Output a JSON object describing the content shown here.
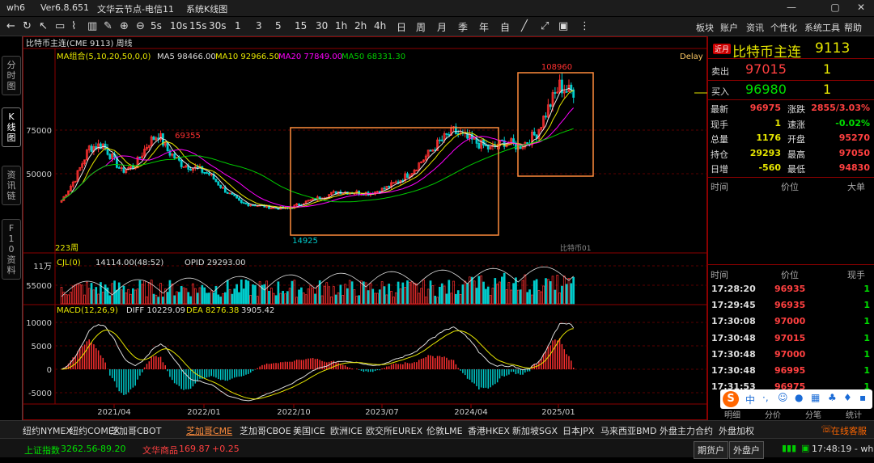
{
  "titlebar": {
    "app": "wh6",
    "version": "Ver6.8.651",
    "server": "文华云节点-电信11",
    "mode": "系统K线图"
  },
  "toolbar": {
    "periods": [
      "5s",
      "10s",
      "15s",
      "30s",
      "1",
      "3",
      "5",
      "15",
      "30",
      "1h",
      "2h",
      "4h",
      "日",
      "周",
      "月",
      "季",
      "年",
      "自"
    ],
    "right_menu": [
      "板块",
      "账户",
      "资讯",
      "个性化",
      "系统工具",
      "帮助"
    ]
  },
  "left_tabs": [
    {
      "label": "分时图",
      "active": false
    },
    {
      "label": "K线图",
      "active": true
    },
    {
      "label": "资讯链",
      "active": false
    },
    {
      "label": "F10资料",
      "active": false
    }
  ],
  "chart_header": {
    "contract": "比特币主连(CME 9113)",
    "period": "周线",
    "delay": "Delay"
  },
  "ma_legend": {
    "title": "MA组合(5,10,20,50,0,0)",
    "ma5": "MA5 98466.00",
    "ma10": "MA10 92966.50",
    "ma20": "MA20 77849.00",
    "ma50": "MA50 68331.30"
  },
  "cjl_legend": {
    "title": "CJL(0)",
    "value": "14114.00(48:52)",
    "opid": "OPID 29293.00"
  },
  "macd_legend": {
    "title": "MACD(12,26,9)",
    "diff": "DIFF 10229.09",
    "dea": "DEA 8276.38",
    "macd": "3905.42"
  },
  "annotations": {
    "high_2021": "69355",
    "low": "14925",
    "high_2024": "108960",
    "count": "223周",
    "watermark": "比特币01"
  },
  "colors": {
    "up": "#ff3030",
    "down": "#00cccc",
    "ma5": "#e6e6e6",
    "ma10": "#e6e600",
    "ma20": "#ff00ff",
    "ma50": "#00cc00",
    "box": "#ff8c3c"
  },
  "chart_data": {
    "type": "candlestick",
    "title": "比特币主连(CME 9113) 周线",
    "price_axis_ticks": [
      "75000",
      "50000"
    ],
    "volume_axis_ticks": [
      "11万",
      "55000"
    ],
    "macd_axis_ticks": [
      "10000",
      "5000",
      "0",
      "-5000"
    ],
    "x_tick_labels": [
      "2021/04",
      "2022/01",
      "2022/10",
      "2023/07",
      "2024/04",
      "2025/01"
    ],
    "key_points": [
      {
        "label": "69355",
        "value": 69355
      },
      {
        "label": "14925",
        "value": 14925
      },
      {
        "label": "108960",
        "value": 108960
      }
    ],
    "last": {
      "ma5": 98466.0,
      "ma10": 92966.5,
      "ma20": 77849.0,
      "ma50": 68331.3,
      "volume": 14114.0,
      "opid": 29293.0,
      "diff": 10229.09,
      "dea": 8276.38,
      "macd": 3905.42
    }
  },
  "quote": {
    "symbol": "比特币主连",
    "code": "9113",
    "badge": "近月",
    "sell_label": "卖出",
    "sell_price": "97015",
    "sell_qty": "1",
    "buy_label": "买入",
    "buy_price": "96980",
    "buy_qty": "1",
    "stats": [
      {
        "l1": "最新",
        "v1": "96975",
        "c1": "red",
        "l2": "涨跌",
        "v2": "2855/3.03%",
        "c2": "red"
      },
      {
        "l1": "现手",
        "v1": "1",
        "c1": "yel",
        "l2": "速涨",
        "v2": "-0.02%",
        "c2": "grn"
      },
      {
        "l1": "总量",
        "v1": "1176",
        "c1": "yel",
        "l2": "开盘",
        "v2": "95270",
        "c2": "red"
      },
      {
        "l1": "持仓",
        "v1": "29293",
        "c1": "yel",
        "l2": "最高",
        "v2": "97050",
        "c2": "red"
      },
      {
        "l1": "日增",
        "v1": "-560",
        "c1": "yel",
        "l2": "最低",
        "v2": "94830",
        "c2": "red"
      }
    ],
    "news_headers": [
      "时间",
      "价位",
      "大单"
    ],
    "tick_headers": [
      "时间",
      "价位",
      "现手"
    ],
    "ticks": [
      [
        "17:28:20",
        "96935",
        "1"
      ],
      [
        "17:29:45",
        "96935",
        "1"
      ],
      [
        "17:30:08",
        "97000",
        "1"
      ],
      [
        "17:30:48",
        "97015",
        "1"
      ],
      [
        "17:30:48",
        "97000",
        "1"
      ],
      [
        "17:30:48",
        "96995",
        "1"
      ],
      [
        "17:31:53",
        "96975",
        "1"
      ]
    ],
    "bottom_tabs": [
      "明细",
      "分价",
      "分笔",
      "统计"
    ]
  },
  "exchanges": [
    "纽约NYMEX",
    "纽约COMEX",
    "芝加哥CBOT",
    "芝加哥CME",
    "芝加哥CBOE",
    "美国ICE",
    "欧洲ICE",
    "欧交所EUREX",
    "伦敦LME",
    "香港HKEX",
    "新加坡SGX",
    "日本JPX",
    "马来西亚BMD",
    "外盘主力合约",
    "外盘加权"
  ],
  "active_exchange": "芝加哥CME",
  "status": {
    "idx1_name": "上证指数",
    "idx1_val": "3262.56",
    "idx1_chg": "-89.20",
    "idx2_name": "文华商品",
    "idx2_val": "169.87",
    "idx2_chg": "+0.25",
    "btn1": "期货户",
    "btn2": "外盘户",
    "time": "17:48:19 - wh",
    "service": "在线客服"
  }
}
